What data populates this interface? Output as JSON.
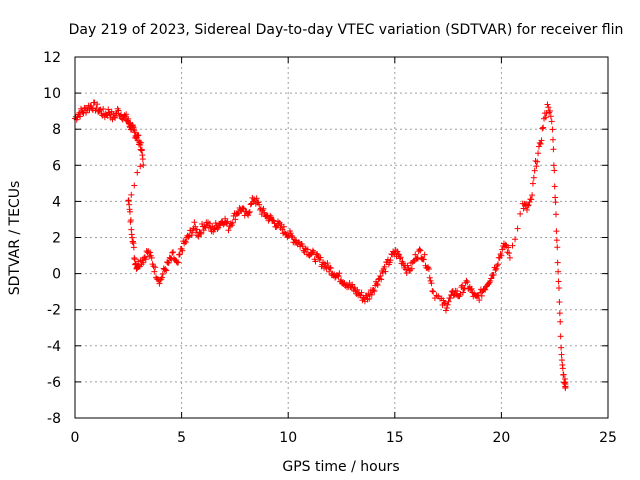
{
  "chart_data": {
    "type": "scatter",
    "title": "Day 219 of 2023, Sidereal Day-to-day VTEC variation (SDTVAR) for receiver flin",
    "xlabel": "GPS time / hours",
    "ylabel": "SDTVAR / TECUs",
    "xlim": [
      0,
      25
    ],
    "ylim": [
      -8,
      12
    ],
    "xticks": [
      0,
      5,
      10,
      15,
      20,
      25
    ],
    "yticks": [
      -8,
      -6,
      -4,
      -2,
      0,
      2,
      4,
      6,
      8,
      10,
      12
    ],
    "xtick_labels": [
      "0",
      "5",
      "10",
      "15",
      "20",
      "25"
    ],
    "ytick_labels": [
      "-8",
      "-6",
      "-4",
      "-2",
      "0",
      "2",
      "4",
      "6",
      "8",
      "10",
      "12"
    ],
    "grid": true,
    "marker": "+",
    "color": "#ff0000",
    "series": [
      {
        "name": "SDTVAR",
        "trace": [
          [
            0.0,
            8.6
          ],
          [
            0.2,
            8.9
          ],
          [
            0.4,
            9.0
          ],
          [
            0.6,
            9.2
          ],
          [
            0.8,
            9.3
          ],
          [
            1.0,
            9.2
          ],
          [
            1.2,
            9.0
          ],
          [
            1.4,
            8.8
          ],
          [
            1.6,
            9.0
          ],
          [
            1.8,
            8.6
          ],
          [
            2.0,
            9.0
          ],
          [
            2.2,
            8.8
          ],
          [
            2.4,
            8.6
          ],
          [
            2.5,
            8.4
          ],
          [
            2.6,
            8.2
          ],
          [
            2.7,
            8.0
          ],
          [
            2.8,
            7.8
          ],
          [
            2.9,
            7.6
          ],
          [
            3.0,
            7.4
          ],
          [
            3.1,
            7.0
          ],
          [
            3.2,
            6.2
          ],
          [
            2.5,
            4.2
          ],
          [
            2.6,
            3.0
          ],
          [
            2.7,
            2.0
          ],
          [
            2.8,
            0.8
          ],
          [
            2.9,
            0.4
          ],
          [
            3.0,
            0.6
          ],
          [
            3.2,
            0.8
          ],
          [
            3.4,
            1.2
          ],
          [
            3.6,
            0.8
          ],
          [
            3.8,
            0.0
          ],
          [
            4.0,
            -0.4
          ],
          [
            4.2,
            0.2
          ],
          [
            4.4,
            0.6
          ],
          [
            4.6,
            1.0
          ],
          [
            4.8,
            0.4
          ],
          [
            5.0,
            1.4
          ],
          [
            5.2,
            1.8
          ],
          [
            5.4,
            2.2
          ],
          [
            5.6,
            2.6
          ],
          [
            5.8,
            2.2
          ],
          [
            6.0,
            2.6
          ],
          [
            6.2,
            2.8
          ],
          [
            6.4,
            2.4
          ],
          [
            6.6,
            2.6
          ],
          [
            6.8,
            2.8
          ],
          [
            7.0,
            3.0
          ],
          [
            7.2,
            2.6
          ],
          [
            7.4,
            3.0
          ],
          [
            7.6,
            3.4
          ],
          [
            7.8,
            3.6
          ],
          [
            8.0,
            3.2
          ],
          [
            8.2,
            3.6
          ],
          [
            8.4,
            4.2
          ],
          [
            8.6,
            3.8
          ],
          [
            8.8,
            3.4
          ],
          [
            9.0,
            3.2
          ],
          [
            9.2,
            3.0
          ],
          [
            9.4,
            2.8
          ],
          [
            9.6,
            2.6
          ],
          [
            9.8,
            2.4
          ],
          [
            10.0,
            2.2
          ],
          [
            10.2,
            2.0
          ],
          [
            10.4,
            1.8
          ],
          [
            10.6,
            1.6
          ],
          [
            10.8,
            1.4
          ],
          [
            11.0,
            1.2
          ],
          [
            11.2,
            1.0
          ],
          [
            11.4,
            0.8
          ],
          [
            11.6,
            0.6
          ],
          [
            11.8,
            0.4
          ],
          [
            12.0,
            0.2
          ],
          [
            12.2,
            0.0
          ],
          [
            12.4,
            -0.2
          ],
          [
            12.6,
            -0.4
          ],
          [
            12.8,
            -0.6
          ],
          [
            13.0,
            -0.8
          ],
          [
            13.2,
            -1.0
          ],
          [
            13.4,
            -1.2
          ],
          [
            13.6,
            -1.4
          ],
          [
            13.8,
            -1.2
          ],
          [
            14.0,
            -0.8
          ],
          [
            14.2,
            -0.4
          ],
          [
            14.4,
            0.0
          ],
          [
            14.6,
            0.4
          ],
          [
            14.8,
            0.8
          ],
          [
            15.0,
            1.2
          ],
          [
            15.2,
            1.0
          ],
          [
            15.4,
            0.6
          ],
          [
            15.6,
            0.2
          ],
          [
            15.8,
            0.4
          ],
          [
            16.0,
            1.0
          ],
          [
            16.2,
            1.2
          ],
          [
            16.4,
            0.8
          ],
          [
            16.6,
            0.2
          ],
          [
            16.8,
            -1.0
          ],
          [
            17.2,
            -1.6
          ],
          [
            17.4,
            -1.8
          ],
          [
            17.6,
            -1.4
          ],
          [
            17.8,
            -1.0
          ],
          [
            18.0,
            -1.2
          ],
          [
            18.2,
            -0.8
          ],
          [
            18.4,
            -0.6
          ],
          [
            18.6,
            -1.0
          ],
          [
            18.8,
            -1.4
          ],
          [
            19.0,
            -1.2
          ],
          [
            19.2,
            -0.8
          ],
          [
            19.4,
            -0.4
          ],
          [
            19.6,
            0.0
          ],
          [
            19.8,
            0.6
          ],
          [
            20.0,
            1.2
          ],
          [
            20.2,
            1.6
          ],
          [
            20.4,
            1.0
          ],
          [
            21.0,
            3.8
          ],
          [
            21.2,
            3.6
          ],
          [
            21.4,
            4.0
          ],
          [
            21.6,
            6.0
          ],
          [
            21.8,
            7.0
          ],
          [
            22.0,
            8.5
          ],
          [
            22.2,
            9.4
          ],
          [
            22.4,
            8.0
          ],
          [
            22.5,
            5.0
          ],
          [
            22.6,
            2.0
          ],
          [
            22.7,
            -1.0
          ],
          [
            22.8,
            -4.0
          ],
          [
            22.9,
            -5.5
          ],
          [
            23.0,
            -6.2
          ]
        ]
      }
    ]
  }
}
